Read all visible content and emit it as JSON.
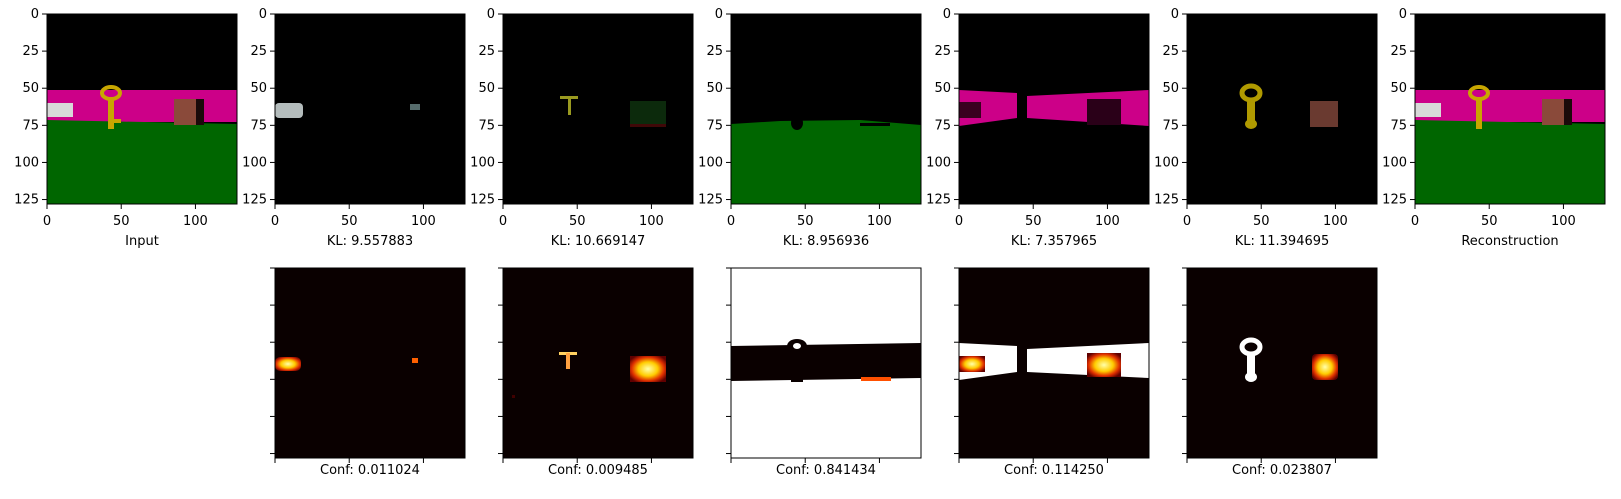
{
  "chart_data": [
    {
      "type": "heatmap",
      "content": "image",
      "xlabel": "Input",
      "xticks": [
        "0",
        "50",
        "100"
      ],
      "yticks": [
        "0",
        "25",
        "50",
        "75",
        "100",
        "125"
      ],
      "xlim": [
        0,
        128
      ],
      "ylim": [
        128,
        0
      ]
    },
    {
      "type": "heatmap",
      "content": "image",
      "xlabel": "KL: 9.557883",
      "kl": 9.557883,
      "xticks": [
        "0",
        "50",
        "100"
      ],
      "yticks": [
        "0",
        "25",
        "50",
        "75",
        "100",
        "125"
      ]
    },
    {
      "type": "heatmap",
      "content": "image",
      "xlabel": "KL: 10.669147",
      "kl": 10.669147,
      "xticks": [
        "0",
        "50",
        "100"
      ],
      "yticks": [
        "0",
        "25",
        "50",
        "75",
        "100",
        "125"
      ]
    },
    {
      "type": "heatmap",
      "content": "image",
      "xlabel": "KL: 8.956936",
      "kl": 8.956936,
      "xticks": [
        "0",
        "50",
        "100"
      ],
      "yticks": [
        "0",
        "25",
        "50",
        "75",
        "100",
        "125"
      ]
    },
    {
      "type": "heatmap",
      "content": "image",
      "xlabel": "KL: 7.357965",
      "kl": 7.357965,
      "xticks": [
        "0",
        "50",
        "100"
      ],
      "yticks": [
        "0",
        "25",
        "50",
        "75",
        "100",
        "125"
      ]
    },
    {
      "type": "heatmap",
      "content": "image",
      "xlabel": "KL: 11.394695",
      "kl": 11.394695,
      "xticks": [
        "0",
        "50",
        "100"
      ],
      "yticks": [
        "0",
        "25",
        "50",
        "75",
        "100",
        "125"
      ]
    },
    {
      "type": "heatmap",
      "content": "image",
      "xlabel": "Reconstruction",
      "xticks": [
        "0",
        "50",
        "100"
      ],
      "yticks": [
        "0",
        "25",
        "50",
        "75",
        "100",
        "125"
      ]
    },
    {
      "type": "heatmap",
      "content": "mask",
      "xlabel": "Conf: 0.011024",
      "confidence": 0.011024
    },
    {
      "type": "heatmap",
      "content": "mask",
      "xlabel": "Conf: 0.009485",
      "confidence": 0.009485
    },
    {
      "type": "heatmap",
      "content": "mask",
      "xlabel": "Conf: 0.841434",
      "confidence": 0.841434
    },
    {
      "type": "heatmap",
      "content": "mask",
      "xlabel": "Conf: 0.114250",
      "confidence": 0.11425
    },
    {
      "type": "heatmap",
      "content": "mask",
      "xlabel": "Conf: 0.023807",
      "confidence": 0.023807
    }
  ],
  "colors": {
    "sky": "#000000",
    "wall": "#cc0088",
    "floor": "#006600",
    "key": "#c8a600",
    "box": "#8a4a3a",
    "car": "#d8d8d8",
    "mask_low": "#0a0000",
    "mask_high": "#ffffff",
    "mask_mid": "#ff2a00"
  }
}
